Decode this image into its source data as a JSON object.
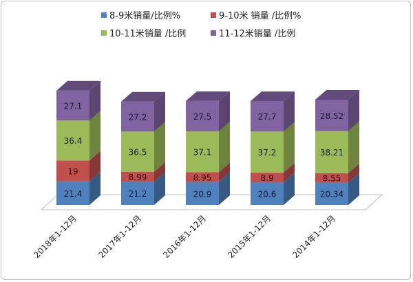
{
  "chart_data": {
    "type": "bar",
    "subtype": "stacked-3d",
    "title": "",
    "categories": [
      "2018年1-12月",
      "2017年1-12月",
      "2016年1-12月",
      "2015年1-12月",
      "2014年1-12月"
    ],
    "series": [
      {
        "name": "8-9米销量/比例%",
        "color": "#4f81bd",
        "values": [
          "21.4",
          "21.2",
          "20.9",
          "20.6",
          "20.34"
        ]
      },
      {
        "name": "9-10米 销量 /比例%",
        "color": "#c0504d",
        "values": [
          "19",
          "8.99",
          "8.95",
          "8.9",
          "8.55"
        ]
      },
      {
        "name": "10-11米销量 /比例",
        "color": "#9bbb59",
        "values": [
          "36.4",
          "36.5",
          "37.1",
          "37.2",
          "38.21"
        ]
      },
      {
        "name": "11-12米销量 /比例",
        "color": "#8064a2",
        "values": [
          "27.1",
          "27.2",
          "27.5",
          "27.7",
          "28.52"
        ]
      }
    ],
    "legend_position": "top",
    "grid": false,
    "data_labels": true
  }
}
